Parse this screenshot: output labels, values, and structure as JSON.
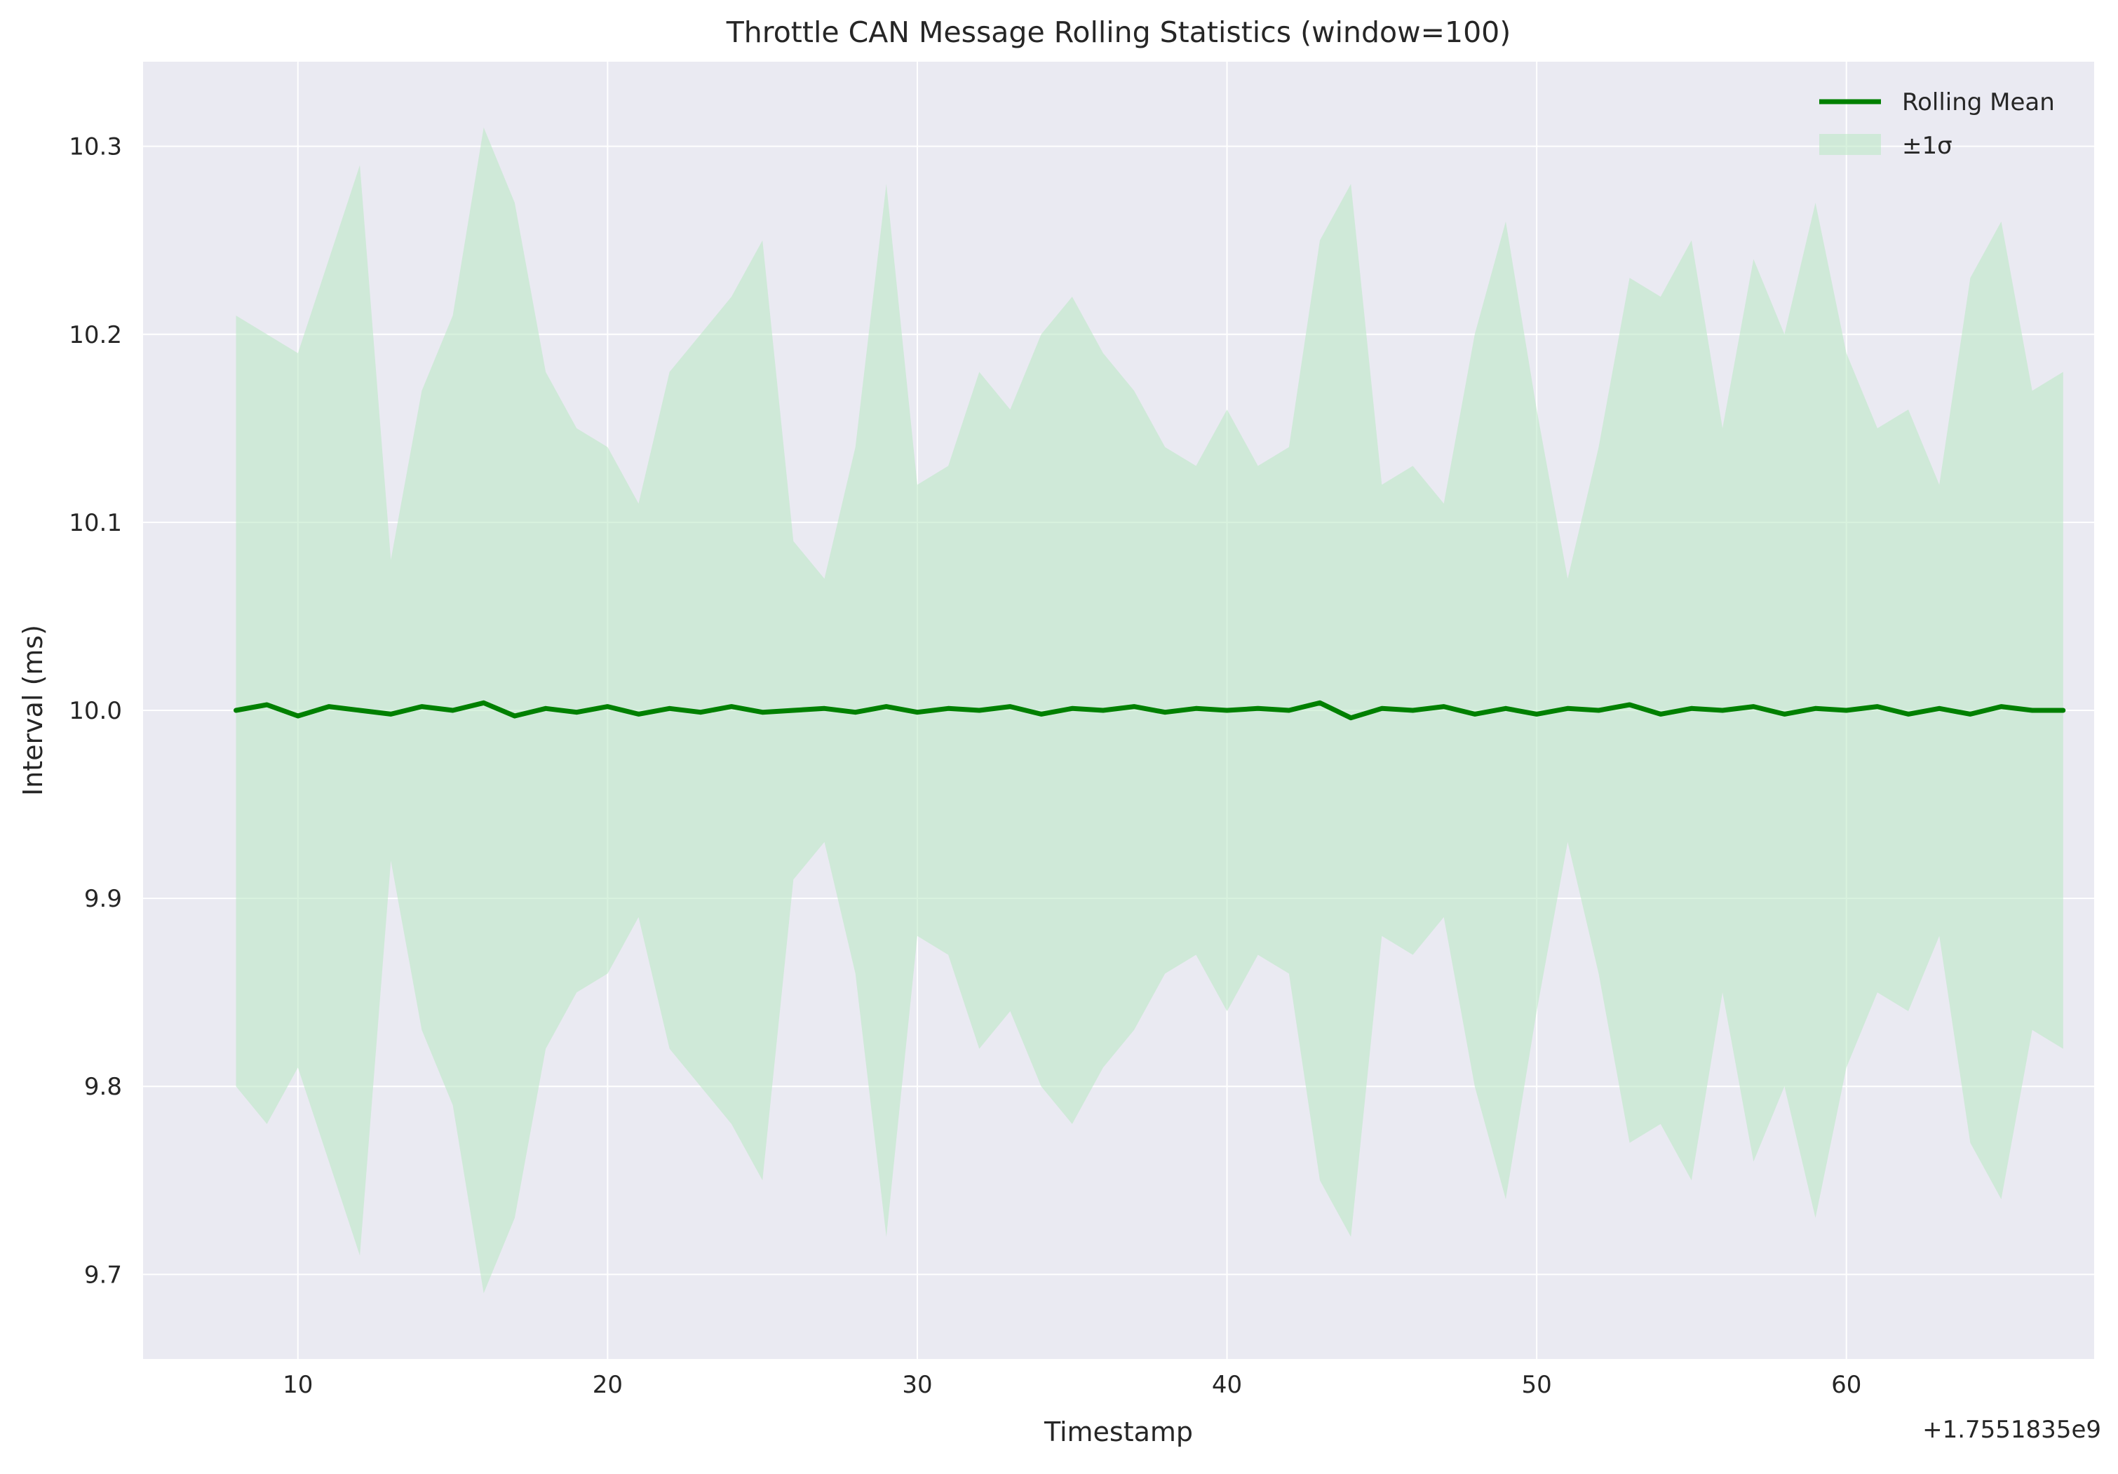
{
  "chart_data": {
    "type": "line",
    "title": "Throttle CAN Message Rolling Statistics (window=100)",
    "xlabel": "Timestamp",
    "ylabel": "Interval (ms)",
    "x_offset_label": "+1.7551835e9",
    "xlim": [
      5,
      68
    ],
    "ylim": [
      9.655,
      10.345
    ],
    "x_ticks": [
      10,
      20,
      30,
      40,
      50,
      60
    ],
    "y_ticks": [
      9.7,
      9.8,
      9.9,
      10.0,
      10.1,
      10.2,
      10.3
    ],
    "x_tick_labels": [
      "10",
      "20",
      "30",
      "40",
      "50",
      "60"
    ],
    "y_tick_labels": [
      "9.7",
      "9.8",
      "9.9",
      "10.0",
      "10.1",
      "10.2",
      "10.3"
    ],
    "grid": true,
    "legend_position": "top-right",
    "colors": {
      "mean_line": "#008000",
      "band_fill": "#b8e8c3",
      "axes_background": "#eaeaf2",
      "grid": "#ffffff"
    },
    "series": [
      {
        "name": "Rolling Mean",
        "kind": "line",
        "x": [
          8,
          9,
          10,
          11,
          12,
          13,
          14,
          15,
          16,
          17,
          18,
          19,
          20,
          21,
          22,
          23,
          24,
          25,
          26,
          27,
          28,
          29,
          30,
          31,
          32,
          33,
          34,
          35,
          36,
          37,
          38,
          39,
          40,
          41,
          42,
          43,
          44,
          45,
          46,
          47,
          48,
          49,
          50,
          51,
          52,
          53,
          54,
          55,
          56,
          57,
          58,
          59,
          60,
          61,
          62,
          63,
          64,
          65,
          66,
          67
        ],
        "y": [
          10.0,
          10.003,
          9.997,
          10.002,
          10.0,
          9.998,
          10.002,
          10.0,
          10.004,
          9.997,
          10.001,
          9.999,
          10.002,
          9.998,
          10.001,
          9.999,
          10.002,
          9.999,
          10.0,
          10.001,
          9.999,
          10.002,
          9.999,
          10.001,
          10.0,
          10.002,
          9.998,
          10.001,
          10.0,
          10.002,
          9.999,
          10.001,
          10.0,
          10.001,
          10.0,
          10.004,
          9.996,
          10.001,
          10.0,
          10.002,
          9.998,
          10.001,
          9.998,
          10.001,
          10.0,
          10.003,
          9.998,
          10.001,
          10.0,
          10.002,
          9.998,
          10.001,
          10.0,
          10.002,
          9.998,
          10.001,
          9.998,
          10.002,
          10.0,
          10.0
        ]
      },
      {
        "name": "±1σ",
        "kind": "band",
        "x": [
          8,
          9,
          10,
          11,
          12,
          13,
          14,
          15,
          16,
          17,
          18,
          19,
          20,
          21,
          22,
          23,
          24,
          25,
          26,
          27,
          28,
          29,
          30,
          31,
          32,
          33,
          34,
          35,
          36,
          37,
          38,
          39,
          40,
          41,
          42,
          43,
          44,
          45,
          46,
          47,
          48,
          49,
          50,
          51,
          52,
          53,
          54,
          55,
          56,
          57,
          58,
          59,
          60,
          61,
          62,
          63,
          64,
          65,
          66,
          67
        ],
        "upper": [
          10.21,
          10.2,
          10.19,
          10.24,
          10.29,
          10.08,
          10.17,
          10.21,
          10.31,
          10.27,
          10.18,
          10.15,
          10.14,
          10.11,
          10.18,
          10.2,
          10.22,
          10.25,
          10.09,
          10.07,
          10.14,
          10.28,
          10.12,
          10.13,
          10.18,
          10.16,
          10.2,
          10.22,
          10.19,
          10.17,
          10.14,
          10.13,
          10.16,
          10.13,
          10.14,
          10.25,
          10.28,
          10.12,
          10.13,
          10.11,
          10.2,
          10.26,
          10.16,
          10.07,
          10.14,
          10.23,
          10.22,
          10.25,
          10.15,
          10.24,
          10.2,
          10.27,
          10.19,
          10.15,
          10.16,
          10.12,
          10.23,
          10.26,
          10.17,
          10.18
        ],
        "lower": [
          9.8,
          9.78,
          9.81,
          9.76,
          9.71,
          9.92,
          9.83,
          9.79,
          9.69,
          9.73,
          9.82,
          9.85,
          9.86,
          9.89,
          9.82,
          9.8,
          9.78,
          9.75,
          9.91,
          9.93,
          9.86,
          9.72,
          9.88,
          9.87,
          9.82,
          9.84,
          9.8,
          9.78,
          9.81,
          9.83,
          9.86,
          9.87,
          9.84,
          9.87,
          9.86,
          9.75,
          9.72,
          9.88,
          9.87,
          9.89,
          9.8,
          9.74,
          9.84,
          9.93,
          9.86,
          9.77,
          9.78,
          9.75,
          9.85,
          9.76,
          9.8,
          9.73,
          9.81,
          9.85,
          9.84,
          9.88,
          9.77,
          9.74,
          9.83,
          9.82
        ]
      }
    ]
  }
}
